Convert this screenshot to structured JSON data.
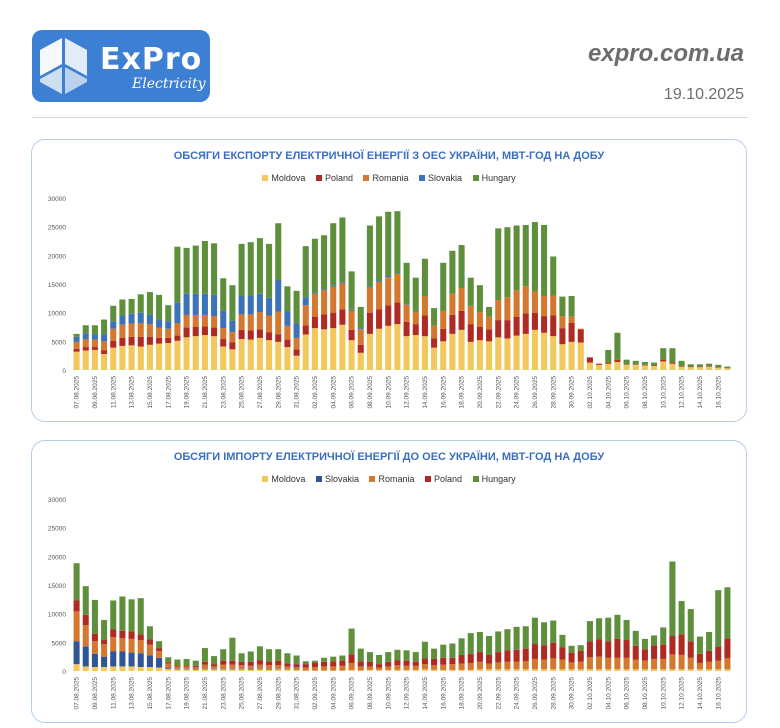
{
  "header": {
    "logo_text": "ExPro",
    "logo_sub": "Electricity",
    "site": "expro.com.ua",
    "date": "19.10.2025"
  },
  "chart_data": [
    {
      "type": "bar",
      "stacked": true,
      "title": "ОБСЯГИ ЕКСПОРТУ ЕЛЕКТРИЧНОЇ ЕНЕРГІЇ З ОЕС УКРАЇНИ, МВТ-ГОД НА ДОБУ",
      "legend": [
        "Moldova",
        "Poland",
        "Romania",
        "Slovakia",
        "Hungary"
      ],
      "ylim": [
        0,
        30000
      ],
      "yticks": [
        0,
        5000,
        10000,
        15000,
        20000,
        25000,
        30000
      ],
      "xlabel_start": "07.08.2025",
      "xlabel_step": 2,
      "categories": [
        "07.08.2025",
        "08.08.2025",
        "09.08.2025",
        "10.08.2025",
        "11.08.2025",
        "12.08.2025",
        "13.08.2025",
        "14.08.2025",
        "15.08.2025",
        "16.08.2025",
        "17.08.2025",
        "18.08.2025",
        "19.08.2025",
        "20.08.2025",
        "21.08.2025",
        "22.08.2025",
        "23.08.2025",
        "24.08.2025",
        "25.08.2025",
        "26.08.2025",
        "27.08.2025",
        "28.08.2025",
        "29.08.2025",
        "30.08.2025",
        "31.08.2025",
        "01.09.2025",
        "02.09.2025",
        "03.09.2025",
        "04.09.2025",
        "05.09.2025",
        "06.09.2025",
        "07.09.2025",
        "08.09.2025",
        "09.09.2025",
        "10.09.2025",
        "11.09.2025",
        "12.09.2025",
        "13.09.2025",
        "14.09.2025",
        "15.09.2025",
        "16.09.2025",
        "17.09.2025",
        "18.09.2025",
        "19.09.2025",
        "20.09.2025",
        "21.09.2025",
        "22.09.2025",
        "23.09.2025",
        "24.09.2025",
        "25.09.2025",
        "26.09.2025",
        "27.09.2025",
        "28.09.2025",
        "29.09.2025",
        "30.09.2025",
        "01.10.2025",
        "02.10.2025",
        "03.10.2025",
        "04.10.2025",
        "05.10.2025",
        "06.10.2025",
        "07.10.2025",
        "08.10.2025",
        "09.10.2025",
        "10.10.2025",
        "11.10.2025",
        "12.10.2025",
        "13.10.2025",
        "14.10.2025",
        "15.10.2025",
        "16.10.2025",
        "17.10.2025"
      ],
      "colors": {
        "Moldova": "#f2c75c",
        "Poland": "#b02a24",
        "Romania": "#d4772f",
        "Slovakia": "#3c73b8",
        "Hungary": "#5e8f3b"
      },
      "series": [
        {
          "name": "Moldova",
          "values": [
            3200,
            3400,
            3500,
            2800,
            3900,
            4200,
            4300,
            4100,
            4400,
            4600,
            4700,
            5100,
            5700,
            5900,
            6100,
            5900,
            4100,
            3600,
            5400,
            5300,
            5600,
            5200,
            4900,
            4000,
            2500,
            6200,
            7300,
            7100,
            7300,
            7900,
            5200,
            3000,
            6300,
            7200,
            7700,
            8000,
            5900,
            6100,
            5900,
            3900,
            5000,
            6300,
            7000,
            4900,
            5200,
            5000,
            5700,
            5500,
            6000,
            6300,
            7000,
            6500,
            5900,
            4500,
            4900,
            4800,
            1300,
            900,
            1100,
            1400,
            900,
            900,
            800,
            700,
            1500,
            1100,
            600,
            500,
            500,
            600,
            400,
            300
          ]
        },
        {
          "name": "Poland",
          "values": [
            500,
            600,
            500,
            600,
            1200,
            1400,
            1500,
            1700,
            1400,
            1000,
            900,
            900,
            1700,
            1600,
            1500,
            1500,
            1300,
            1200,
            1600,
            1600,
            1500,
            1400,
            1300,
            1300,
            1100,
            1600,
            2000,
            2600,
            2700,
            2700,
            1800,
            1400,
            3700,
            3400,
            3600,
            3800,
            2500,
            1900,
            3600,
            1600,
            2200,
            3300,
            3300,
            3100,
            2300,
            2100,
            3000,
            3200,
            3300,
            3600,
            3000,
            2900,
            3600,
            2800,
            3300,
            2300,
            900,
            200,
            200,
            400,
            100,
            100,
            100,
            100,
            300,
            200,
            100,
            100,
            100,
            100,
            100,
            0
          ]
        },
        {
          "name": "Romania",
          "values": [
            1200,
            1400,
            1300,
            1600,
            2100,
            2300,
            2300,
            2400,
            2200,
            1800,
            1600,
            2200,
            2200,
            2100,
            2000,
            2000,
            1900,
            1800,
            2700,
            2800,
            3000,
            2900,
            4000,
            2400,
            2000,
            3500,
            4000,
            4200,
            4500,
            4500,
            3300,
            2700,
            4400,
            4800,
            4900,
            5000,
            3000,
            2200,
            3400,
            2200,
            3100,
            3700,
            4000,
            3200,
            2600,
            2200,
            3500,
            4000,
            4600,
            4700,
            3700,
            3500,
            3500,
            2100,
            1100,
            100,
            0,
            0,
            0,
            0,
            0,
            0,
            0,
            0,
            0,
            0,
            0,
            0,
            0,
            0,
            0,
            0
          ]
        },
        {
          "name": "Slovakia",
          "values": [
            900,
            1000,
            900,
            1200,
            1300,
            1600,
            1700,
            1800,
            1600,
            1400,
            1300,
            3600,
            3700,
            3700,
            3700,
            3700,
            3000,
            2000,
            3200,
            3300,
            3200,
            3100,
            5500,
            2500,
            2500,
            1400,
            200,
            200,
            200,
            200,
            200,
            200,
            200,
            200,
            200,
            200,
            100,
            100,
            0,
            0,
            0,
            0,
            0,
            0,
            0,
            0,
            0,
            0,
            0,
            0,
            0,
            0,
            0,
            0,
            0,
            0,
            0,
            0,
            0,
            0,
            0,
            0,
            0,
            0,
            0,
            0,
            0,
            0,
            0,
            0,
            0,
            0
          ]
        },
        {
          "name": "Hungary",
          "values": [
            500,
            1400,
            1600,
            2600,
            2700,
            2800,
            2600,
            3200,
            4000,
            4300,
            2800,
            9700,
            8000,
            8400,
            9200,
            9000,
            5700,
            6200,
            9100,
            9300,
            9700,
            9400,
            9900,
            4400,
            5700,
            8900,
            9400,
            9400,
            10900,
            11300,
            6700,
            3700,
            10600,
            11200,
            11200,
            10700,
            7200,
            5800,
            6500,
            3100,
            8400,
            7500,
            7500,
            4900,
            4700,
            1700,
            12500,
            12200,
            11300,
            10700,
            12100,
            12400,
            6800,
            3400,
            3600,
            0,
            0,
            0,
            2200,
            4700,
            800,
            600,
            500,
            500,
            2000,
            2500,
            900,
            400,
            400,
            400,
            400,
            300
          ]
        }
      ]
    },
    {
      "type": "bar",
      "stacked": true,
      "title": "ОБСЯГИ ІМПОРТУ ЕЛЕКТРИЧНОЇ ЕНЕРГІЇ ДО ОЕС УКРАЇНИ, МВТ-ГОД НА ДОБУ",
      "legend": [
        "Moldova",
        "Slovakia",
        "Romania",
        "Poland",
        "Hungary"
      ],
      "ylim": [
        0,
        30000
      ],
      "yticks": [
        0,
        5000,
        10000,
        15000,
        20000,
        25000,
        30000
      ],
      "xlabel_start": "07.08.2025",
      "xlabel_step": 2,
      "categories": [
        "07.08.2025",
        "08.08.2025",
        "09.08.2025",
        "10.08.2025",
        "11.08.2025",
        "12.08.2025",
        "13.08.2025",
        "14.08.2025",
        "15.08.2025",
        "16.08.2025",
        "17.08.2025",
        "18.08.2025",
        "19.08.2025",
        "20.08.2025",
        "21.08.2025",
        "22.08.2025",
        "23.08.2025",
        "24.08.2025",
        "25.08.2025",
        "26.08.2025",
        "27.08.2025",
        "28.08.2025",
        "29.08.2025",
        "30.08.2025",
        "31.08.2025",
        "01.09.2025",
        "02.09.2025",
        "03.09.2025",
        "04.09.2025",
        "05.09.2025",
        "06.09.2025",
        "07.09.2025",
        "08.09.2025",
        "09.09.2025",
        "10.09.2025",
        "11.09.2025",
        "12.09.2025",
        "13.09.2025",
        "14.09.2025",
        "15.09.2025",
        "16.09.2025",
        "17.09.2025",
        "18.09.2025",
        "19.09.2025",
        "20.09.2025",
        "21.09.2025",
        "22.09.2025",
        "23.09.2025",
        "24.09.2025",
        "25.09.2025",
        "26.09.2025",
        "27.09.2025",
        "28.09.2025",
        "29.09.2025",
        "30.09.2025",
        "01.10.2025",
        "02.10.2025",
        "03.10.2025",
        "04.10.2025",
        "05.10.2025",
        "06.10.2025",
        "07.10.2025",
        "08.10.2025",
        "09.10.2025",
        "10.10.2025",
        "11.10.2025",
        "12.10.2025",
        "13.10.2025",
        "14.10.2025",
        "15.10.2025",
        "16.10.2025",
        "17.10.2025"
      ],
      "colors": {
        "Moldova": "#f2c75c",
        "Slovakia": "#2f5597",
        "Romania": "#d4772f",
        "Poland": "#b02a24",
        "Hungary": "#5e8f3b"
      },
      "series": [
        {
          "name": "Moldova",
          "values": [
            1200,
            800,
            700,
            700,
            800,
            800,
            800,
            700,
            700,
            600,
            400,
            300,
            300,
            200,
            300,
            300,
            300,
            300,
            300,
            200,
            300,
            200,
            300,
            300,
            200,
            100,
            100,
            100,
            100,
            100,
            200,
            100,
            200,
            200,
            200,
            200,
            200,
            200,
            300,
            200,
            200,
            200,
            200,
            200,
            300,
            300,
            300,
            300,
            300,
            300,
            300,
            300,
            300,
            300,
            300,
            300,
            300,
            300,
            300,
            300,
            300,
            300,
            300,
            300,
            300,
            300,
            300,
            300,
            300,
            300,
            300,
            300
          ]
        },
        {
          "name": "Slovakia",
          "values": [
            4000,
            3500,
            2300,
            1800,
            2600,
            2600,
            2400,
            2400,
            2000,
            1700,
            200,
            100,
            100,
            100,
            100,
            100,
            100,
            100,
            100,
            100,
            100,
            100,
            100,
            100,
            100,
            0,
            0,
            0,
            0,
            0,
            0,
            0,
            0,
            0,
            0,
            0,
            0,
            0,
            0,
            0,
            0,
            0,
            0,
            0,
            0,
            0,
            0,
            0,
            0,
            0,
            0,
            0,
            0,
            0,
            0,
            0,
            0,
            0,
            0,
            0,
            0,
            0,
            0,
            0,
            0,
            0,
            0,
            0,
            0,
            0,
            0,
            0
          ]
        },
        {
          "name": "Romania",
          "values": [
            5200,
            3700,
            2200,
            2200,
            2500,
            2300,
            2400,
            2300,
            1900,
            1200,
            700,
            400,
            400,
            400,
            700,
            400,
            700,
            700,
            600,
            600,
            700,
            700,
            600,
            400,
            400,
            500,
            600,
            700,
            700,
            800,
            1200,
            700,
            600,
            400,
            600,
            800,
            700,
            700,
            900,
            800,
            900,
            1000,
            1100,
            1200,
            1300,
            1000,
            1200,
            1300,
            1300,
            1400,
            1800,
            1700,
            1900,
            1700,
            1200,
            1300,
            2100,
            2200,
            2000,
            2000,
            2000,
            1700,
            1500,
            1800,
            1800,
            2600,
            2500,
            2000,
            1100,
            1300,
            1500,
            1900
          ]
        },
        {
          "name": "Poland",
          "values": [
            1900,
            1800,
            1300,
            700,
            1400,
            1300,
            1300,
            1000,
            900,
            500,
            200,
            200,
            200,
            200,
            500,
            400,
            700,
            700,
            600,
            700,
            800,
            700,
            800,
            500,
            500,
            600,
            700,
            800,
            900,
            900,
            1500,
            900,
            800,
            600,
            800,
            900,
            900,
            700,
            1000,
            1100,
            1200,
            1100,
            1500,
            1600,
            1700,
            1500,
            1800,
            2000,
            2100,
            2200,
            2600,
            2500,
            2700,
            2100,
            1700,
            1900,
            2800,
            3000,
            2900,
            3300,
            3100,
            2400,
            2000,
            2400,
            2500,
            3200,
            3600,
            2900,
            1600,
            1900,
            2500,
            3500
          ]
        },
        {
          "name": "Hungary",
          "values": [
            6500,
            5000,
            5900,
            3500,
            5000,
            6000,
            5600,
            6300,
            2300,
            1200,
            900,
            1000,
            1100,
            900,
            2400,
            1400,
            2000,
            4000,
            1500,
            1800,
            2400,
            2100,
            2000,
            1800,
            1500,
            500,
            400,
            700,
            800,
            900,
            4500,
            2200,
            1700,
            1600,
            1700,
            1800,
            1800,
            1700,
            2900,
            1800,
            2300,
            2500,
            2900,
            3600,
            3500,
            3300,
            3600,
            3700,
            4000,
            3900,
            4600,
            4000,
            3900,
            2200,
            1200,
            1000,
            3500,
            3700,
            4100,
            4200,
            3500,
            2600,
            1800,
            1700,
            3000,
            13000,
            5800,
            5600,
            3000,
            3300,
            9800,
            8900
          ]
        }
      ]
    }
  ]
}
